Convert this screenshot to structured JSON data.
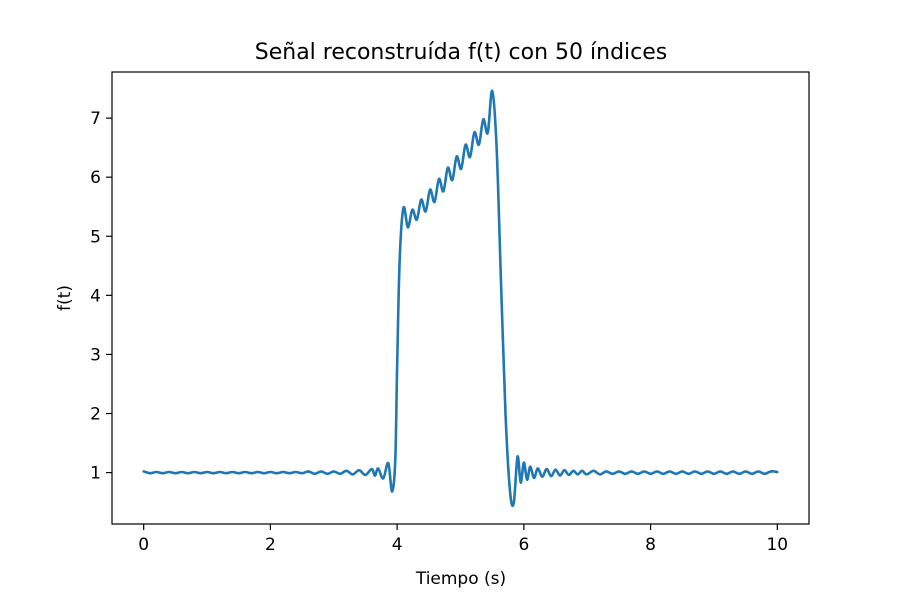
{
  "chart_data": {
    "type": "line",
    "title": "Señal reconstruída f(t) con 50 índices",
    "xlabel": "Tiempo (s)",
    "ylabel": "f(t)",
    "xlim": [
      -0.5,
      10.5
    ],
    "ylim": [
      0.13,
      7.78
    ],
    "grid": false,
    "x_ticks": [
      0,
      2,
      4,
      6,
      8,
      10
    ],
    "y_ticks": [
      1,
      2,
      3,
      4,
      5,
      6,
      7
    ],
    "x_tick_labels": [
      "0",
      "2",
      "4",
      "6",
      "8",
      "10"
    ],
    "y_tick_labels": [
      "1",
      "2",
      "3",
      "4",
      "5",
      "6",
      "7"
    ],
    "series": [
      {
        "color": "#1f77b4",
        "x": [
          0,
          0.1,
          0.2,
          0.3,
          0.4,
          0.5,
          0.6,
          0.7,
          0.8,
          0.9,
          1.0,
          1.1,
          1.2,
          1.3,
          1.4,
          1.5,
          1.6,
          1.7,
          1.8,
          1.9,
          2.0,
          2.1,
          2.2,
          2.3,
          2.4,
          2.5,
          2.6,
          2.7,
          2.8,
          2.9,
          3.0,
          3.1,
          3.2,
          3.3,
          3.4,
          3.5,
          3.6,
          3.65,
          3.7,
          3.78,
          3.86,
          3.92,
          3.97,
          4.0,
          4.04,
          4.1,
          4.17,
          4.24,
          4.31,
          4.38,
          4.45,
          4.52,
          4.59,
          4.66,
          4.73,
          4.8,
          4.87,
          4.94,
          5.01,
          5.08,
          5.15,
          5.22,
          5.29,
          5.36,
          5.43,
          5.5,
          5.57,
          5.64,
          5.71,
          5.78,
          5.84,
          5.9,
          5.95,
          6.0,
          6.05,
          6.1,
          6.16,
          6.22,
          6.29,
          6.36,
          6.43,
          6.5,
          6.57,
          6.64,
          6.71,
          6.78,
          6.85,
          6.92,
          6.99,
          7.1,
          7.2,
          7.3,
          7.4,
          7.5,
          7.6,
          7.7,
          7.8,
          7.9,
          8.0,
          8.1,
          8.2,
          8.3,
          8.4,
          8.5,
          8.6,
          8.7,
          8.8,
          8.9,
          9.0,
          9.1,
          9.2,
          9.3,
          9.4,
          9.5,
          9.6,
          9.7,
          9.8,
          9.9,
          10.0
        ],
        "y": [
          1.02,
          0.99,
          1.01,
          0.99,
          1.01,
          0.99,
          1.01,
          0.99,
          1.01,
          0.99,
          1.01,
          0.99,
          1.01,
          0.99,
          1.01,
          0.99,
          1.01,
          0.99,
          1.01,
          0.99,
          1.01,
          0.99,
          1.01,
          0.99,
          1.01,
          0.99,
          1.02,
          0.98,
          1.02,
          0.98,
          1.02,
          0.98,
          1.03,
          0.97,
          1.04,
          0.96,
          1.06,
          0.95,
          1.07,
          0.9,
          1.16,
          0.68,
          1.2,
          2.8,
          4.6,
          5.48,
          5.15,
          5.45,
          5.28,
          5.62,
          5.42,
          5.79,
          5.58,
          5.97,
          5.76,
          6.16,
          5.95,
          6.35,
          6.14,
          6.55,
          6.34,
          6.76,
          6.55,
          6.98,
          6.75,
          7.46,
          6.5,
          4.2,
          2.0,
          0.7,
          0.48,
          1.27,
          0.83,
          1.17,
          0.88,
          1.1,
          0.91,
          1.07,
          0.93,
          1.06,
          0.94,
          1.05,
          0.95,
          1.04,
          0.96,
          1.03,
          0.97,
          1.03,
          0.97,
          1.03,
          0.97,
          1.02,
          0.98,
          1.02,
          0.98,
          1.02,
          0.98,
          1.02,
          0.98,
          1.02,
          0.98,
          1.02,
          0.98,
          1.02,
          0.98,
          1.02,
          0.98,
          1.02,
          0.98,
          1.02,
          0.98,
          1.02,
          0.98,
          1.02,
          0.98,
          1.02,
          0.98,
          1.02,
          1.01
        ]
      }
    ]
  }
}
